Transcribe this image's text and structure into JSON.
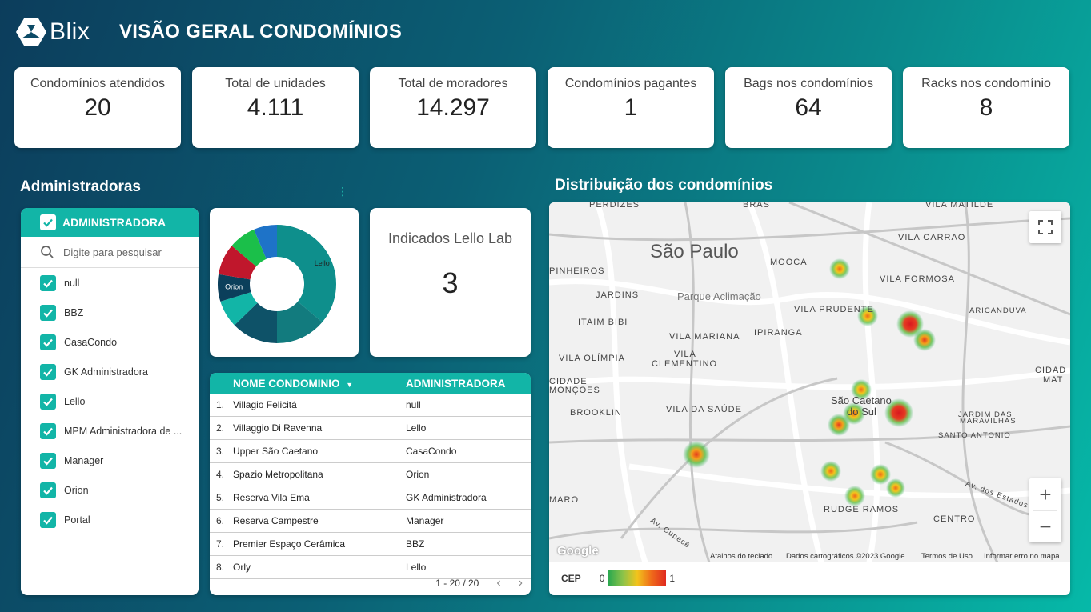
{
  "header": {
    "logo_text": "Blix",
    "title": "VISÃO GERAL CONDOMÍNIOS"
  },
  "kpis": [
    {
      "label": "Condomínios atendidos",
      "value": "20"
    },
    {
      "label": "Total de unidades",
      "value": "4.111"
    },
    {
      "label": "Total de moradores",
      "value": "14.297"
    },
    {
      "label": "Condomínios pagantes",
      "value": "1"
    },
    {
      "label": "Bags nos condomínios",
      "value": "64"
    },
    {
      "label": "Racks nos condomínio",
      "value": "8"
    }
  ],
  "administradoras": {
    "title": "Administradoras",
    "header": "ADMINISTRADORA",
    "search_placeholder": "Digite para pesquisar",
    "items": [
      "null",
      "BBZ",
      "CasaCondo",
      "GK Administradora",
      "Lello",
      "MPM Administradora de ...",
      "Manager",
      "Orion",
      "Portal"
    ]
  },
  "chart_data": {
    "type": "pie",
    "labels": [
      "Lello",
      "",
      "",
      "",
      "Orion",
      "",
      "",
      ""
    ],
    "values": [
      34,
      13,
      12,
      7,
      7,
      8,
      7,
      6
    ],
    "colors": [
      "#0e8f8c",
      "#127b7e",
      "#0e5268",
      "#12b5a7",
      "#0b3f5b",
      "#c0172c",
      "#1bbf4a",
      "#1e73c8"
    ]
  },
  "indicados": {
    "label": "Indicados Lello Lab",
    "value": "3"
  },
  "table": {
    "headers": {
      "name": "NOME CONDOMINIO",
      "adm": "ADMINISTRADORA"
    },
    "rows": [
      {
        "idx": "1.",
        "name": "Villagio Felicitá",
        "adm": "null"
      },
      {
        "idx": "2.",
        "name": "Villaggio Di Ravenna",
        "adm": "Lello"
      },
      {
        "idx": "3.",
        "name": "Upper São Caetano",
        "adm": "CasaCondo"
      },
      {
        "idx": "4.",
        "name": "Spazio Metropolitana",
        "adm": "Orion"
      },
      {
        "idx": "5.",
        "name": "Reserva Vila Ema",
        "adm": "GK Administradora"
      },
      {
        "idx": "6.",
        "name": "Reserva Campestre",
        "adm": "Manager"
      },
      {
        "idx": "7.",
        "name": "Premier Espaço Cerâmica",
        "adm": "BBZ"
      },
      {
        "idx": "8.",
        "name": "Orly",
        "adm": "Lello"
      }
    ],
    "pagination": "1 - 20 / 20"
  },
  "map": {
    "title": "Distribuição dos condomínios",
    "labels": [
      {
        "text": "PERDIZES"
      },
      {
        "text": "BRAS"
      },
      {
        "text": "VILA MATILDE"
      },
      {
        "text": "São Paulo"
      },
      {
        "text": "VILA CARRAO"
      },
      {
        "text": "MOOCA"
      },
      {
        "text": "PINHEIROS"
      },
      {
        "text": "VILA FORMOSA"
      },
      {
        "text": "JARDINS"
      },
      {
        "text": "Parque Aclimação"
      },
      {
        "text": "VILA PRUDENTE"
      },
      {
        "text": "ARICANDUVA"
      },
      {
        "text": "ITAIM BIBI"
      },
      {
        "text": "VILA MARIANA"
      },
      {
        "text": "IPIRANGA"
      },
      {
        "text": "VILA OLÍMPIA"
      },
      {
        "text": "VILA"
      },
      {
        "text": "CLEMENTINO"
      },
      {
        "text": "CIDADE"
      },
      {
        "text": "MONÇOES"
      },
      {
        "text": "São Caetano"
      },
      {
        "text": "do Sul"
      },
      {
        "text": "CIDAD"
      },
      {
        "text": "MAT"
      },
      {
        "text": "BROOKLIN"
      },
      {
        "text": "VILA DA SAÚDE"
      },
      {
        "text": "JARDIM DAS"
      },
      {
        "text": "MARAVILHAS"
      },
      {
        "text": "SANTO ANTONIO"
      },
      {
        "text": "MARO"
      },
      {
        "text": "RUDGE RAMOS"
      },
      {
        "text": "CENTRO"
      },
      {
        "text": "Av. Cupecê"
      },
      {
        "text": "Av. dos Estados"
      }
    ],
    "attribution": [
      "Atalhos do teclado",
      "Dados cartográficos ©2023 Google",
      "Termos de Uso",
      "Informar erro no mapa"
    ],
    "google": "Google",
    "legend": {
      "label": "CEP",
      "min": "0",
      "max": "1"
    }
  }
}
